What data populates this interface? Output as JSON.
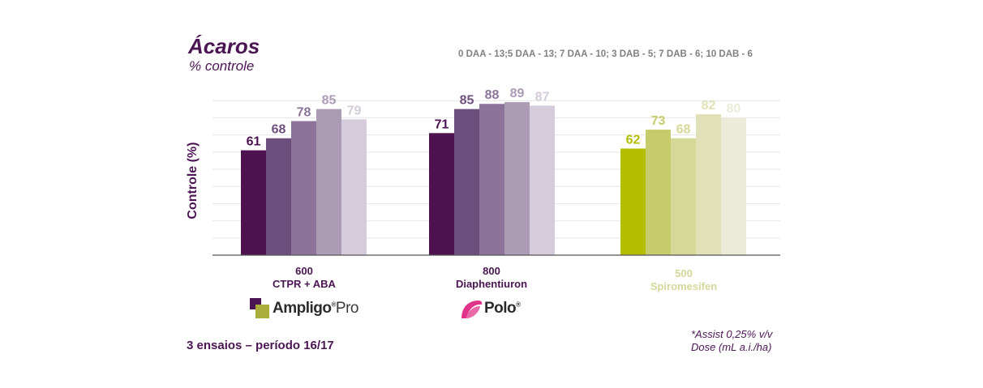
{
  "header": {
    "title": "Ácaros",
    "subtitle": "% controle",
    "legend_note": "0 DAA - 13;5 DAA - 13; 7 DAA - 10; 3 DAB - 5; 7 DAB - 6; 10 DAB - 6"
  },
  "chart_data": {
    "type": "bar",
    "ylabel": "Controle (%)",
    "ylim": [
      0,
      90
    ],
    "grid": true,
    "groups": [
      {
        "dose": "600",
        "name": "CTPR + ABA",
        "values": [
          61,
          68,
          78,
          85,
          79
        ],
        "colors": [
          "#4e1251",
          "#6e4e7c",
          "#8b7399",
          "#ab9bb5",
          "#d5cbdb"
        ],
        "label_colors": [
          "#4e1251",
          "#6e4e7c",
          "#8b7399",
          "#ab9bb5",
          "#d5cbdb"
        ],
        "name_color": "#4a1552"
      },
      {
        "dose": "800",
        "name": "Diaphentiuron",
        "values": [
          71,
          85,
          88,
          89,
          87
        ],
        "colors": [
          "#4e1251",
          "#6e4e7c",
          "#8b7399",
          "#ab9bb5",
          "#d5cbdb"
        ],
        "label_colors": [
          "#4e1251",
          "#6e4e7c",
          "#8b7399",
          "#ab9bb5",
          "#d5cbdb"
        ],
        "name_color": "#4a1552"
      },
      {
        "dose": "500",
        "name": "Spiromesifen",
        "values": [
          62,
          73,
          68,
          82,
          80
        ],
        "colors": [
          "#b5bd00",
          "#c6cc6c",
          "#d5d897",
          "#e0e1b6",
          "#ecebd8"
        ],
        "label_colors": [
          "#b5bd00",
          "#c6cc6c",
          "#d5d897",
          "#e0e1b6",
          "#ecebd8"
        ],
        "name_color": "#d4d79a"
      }
    ]
  },
  "brands": {
    "ampligo_main": "Ampligo",
    "ampligo_reg": "®",
    "ampligo_suffix": "Pro",
    "polo_main": "Polo",
    "polo_reg": "®"
  },
  "footer": {
    "trials": "3 ensaios – período 16/17",
    "note1": "*Assist 0,25% v/v",
    "note2": "Dose (mL a.i./ha)"
  }
}
